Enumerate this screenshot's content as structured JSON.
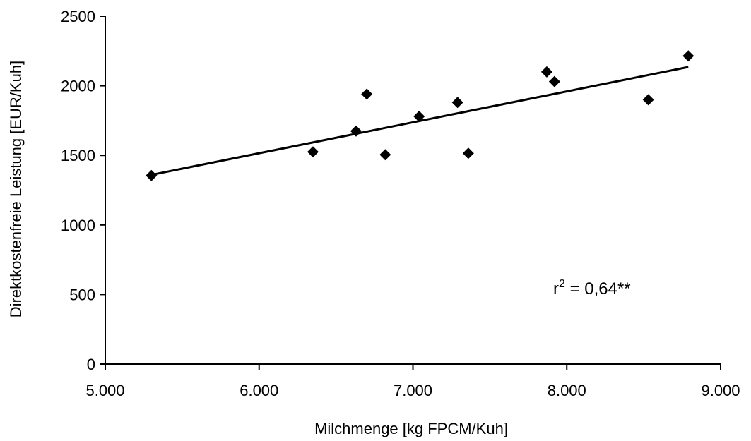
{
  "chart_data": {
    "type": "scatter",
    "xlabel": "Milchmenge [kg FPCM/Kuh]",
    "ylabel": "Direktkostenfreie Leistung [EUR/Kuh]",
    "xlim": [
      5000,
      9000
    ],
    "ylim": [
      0,
      2500
    ],
    "xticks": [
      5000,
      6000,
      7000,
      8000,
      9000
    ],
    "xtick_labels": [
      "5.000",
      "6.000",
      "7.000",
      "8.000",
      "9.000"
    ],
    "yticks": [
      0,
      500,
      1000,
      1500,
      2000,
      2500
    ],
    "ytick_labels": [
      "0",
      "500",
      "1000",
      "1500",
      "2000",
      "2500"
    ],
    "grid": false,
    "marker": "diamond",
    "marker_color": "#000000",
    "points": [
      {
        "x": 5300,
        "y": 1355
      },
      {
        "x": 6350,
        "y": 1525
      },
      {
        "x": 6630,
        "y": 1675
      },
      {
        "x": 6700,
        "y": 1940
      },
      {
        "x": 6820,
        "y": 1505
      },
      {
        "x": 7040,
        "y": 1780
      },
      {
        "x": 7290,
        "y": 1880
      },
      {
        "x": 7360,
        "y": 1515
      },
      {
        "x": 7870,
        "y": 2100
      },
      {
        "x": 7920,
        "y": 2030
      },
      {
        "x": 8530,
        "y": 1900
      },
      {
        "x": 8790,
        "y": 2215
      }
    ],
    "trendline": {
      "x1": 5300,
      "y1": 1360,
      "x2": 8790,
      "y2": 2135
    },
    "annotation": {
      "base": "r",
      "superscript": "2",
      "rest": " = 0,64**"
    }
  }
}
